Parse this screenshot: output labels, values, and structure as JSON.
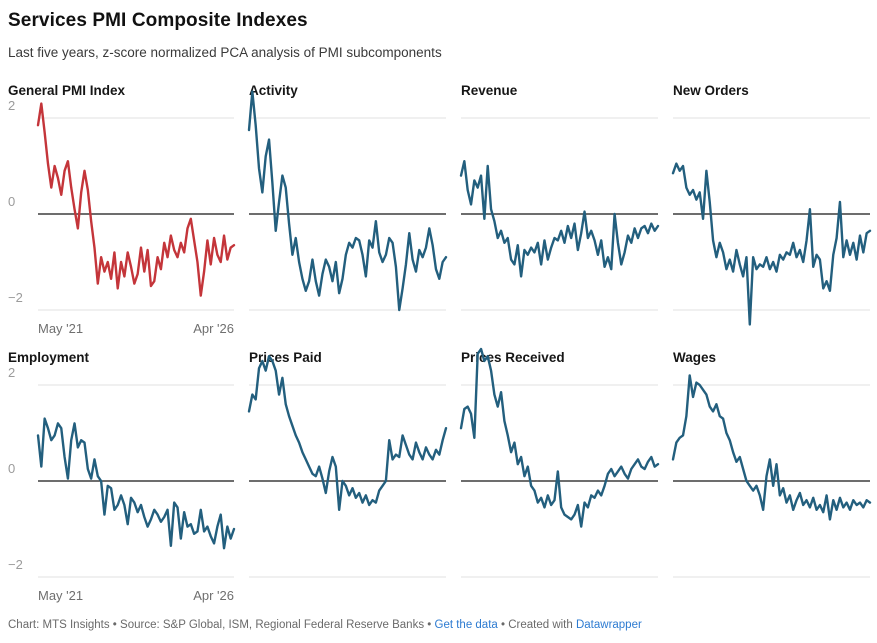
{
  "header": {
    "title": "Services PMI Composite Indexes",
    "subtitle": "Last five years, z-score normalized PCA analysis of PMI subcomponents"
  },
  "colors": {
    "highlight_red": "#c4353a",
    "series_teal": "#235f7e",
    "gridline": "#e2e2e2",
    "zero_line": "#161616",
    "tick_label": "#9b9b9b",
    "link_blue": "#2d7bd1"
  },
  "footer": {
    "part1": "Chart: MTS Insights • Source: S&P Global, ISM, Regional Federal Reserve Banks • ",
    "link_get_data": "Get the data",
    "part2": " • Created with ",
    "link_datawrapper": "Datawrapper"
  },
  "chart_data": {
    "type": "line",
    "layout": "small-multiples 2 rows x 4 cols",
    "x_range_labels": [
      "May '21",
      "Apr '26"
    ],
    "y_tick_labels": [
      "2",
      "0",
      "−2"
    ],
    "y_ticks": [
      2,
      0,
      -2
    ],
    "ylim": [
      -2.15,
      2.35
    ],
    "zero_baseline": true,
    "grid": "horizontal",
    "legend": "none",
    "panels": [
      {
        "title": "General PMI Index",
        "color": "#c4353a",
        "values": [
          1.85,
          2.3,
          1.7,
          1.05,
          0.55,
          1.0,
          0.75,
          0.4,
          0.9,
          1.1,
          0.55,
          0.1,
          -0.3,
          0.45,
          0.9,
          0.5,
          -0.15,
          -0.7,
          -1.45,
          -0.9,
          -1.2,
          -1.0,
          -1.35,
          -0.8,
          -1.55,
          -1.0,
          -1.3,
          -0.8,
          -1.1,
          -1.45,
          -1.25,
          -0.7,
          -1.2,
          -0.75,
          -1.5,
          -1.4,
          -0.9,
          -1.15,
          -0.6,
          -0.9,
          -0.45,
          -0.75,
          -0.9,
          -0.6,
          -0.8,
          -0.3,
          -0.1,
          -0.55,
          -1.0,
          -1.7,
          -1.2,
          -0.55,
          -1.05,
          -0.5,
          -0.85,
          -1.0,
          -0.45,
          -0.95,
          -0.7,
          -0.65
        ]
      },
      {
        "title": "Activity",
        "color": "#235f7e",
        "values": [
          1.75,
          2.55,
          1.85,
          0.95,
          0.45,
          1.2,
          1.55,
          0.65,
          -0.35,
          0.25,
          0.8,
          0.55,
          -0.2,
          -0.85,
          -0.5,
          -1.0,
          -1.35,
          -1.6,
          -1.4,
          -0.95,
          -1.4,
          -1.7,
          -1.25,
          -0.95,
          -1.1,
          -1.4,
          -1.0,
          -1.65,
          -1.35,
          -0.85,
          -0.6,
          -0.7,
          -0.5,
          -0.55,
          -0.85,
          -1.3,
          -0.55,
          -0.7,
          -0.15,
          -0.8,
          -1.0,
          -0.85,
          -0.5,
          -0.6,
          -1.1,
          -2.0,
          -1.55,
          -1.05,
          -0.4,
          -0.95,
          -1.2,
          -0.75,
          -0.9,
          -0.7,
          -0.3,
          -0.65,
          -1.15,
          -1.35,
          -1.0,
          -0.9
        ]
      },
      {
        "title": "Revenue",
        "color": "#235f7e",
        "values": [
          0.8,
          1.1,
          0.5,
          0.2,
          0.7,
          0.55,
          0.8,
          -0.1,
          1.0,
          0.1,
          -0.15,
          -0.5,
          -0.35,
          -0.6,
          -0.5,
          -0.95,
          -1.05,
          -0.65,
          -1.3,
          -0.75,
          -0.85,
          -0.7,
          -0.8,
          -0.6,
          -1.05,
          -0.55,
          -0.95,
          -0.7,
          -0.5,
          -0.55,
          -0.35,
          -0.6,
          -0.25,
          -0.5,
          -0.2,
          -0.75,
          -0.4,
          0.05,
          -0.5,
          -0.35,
          -0.55,
          -0.85,
          -0.55,
          -1.1,
          -0.9,
          -1.15,
          0.0,
          -0.6,
          -1.05,
          -0.8,
          -0.45,
          -0.6,
          -0.3,
          -0.5,
          -0.3,
          -0.25,
          -0.4,
          -0.2,
          -0.35,
          -0.25
        ]
      },
      {
        "title": "New Orders",
        "color": "#235f7e",
        "values": [
          0.85,
          1.05,
          0.9,
          1.0,
          0.55,
          0.4,
          0.5,
          0.3,
          0.45,
          -0.1,
          0.9,
          0.25,
          -0.55,
          -0.9,
          -0.6,
          -0.8,
          -1.15,
          -0.95,
          -1.2,
          -0.75,
          -1.05,
          -1.3,
          -0.9,
          -2.3,
          -0.9,
          -1.15,
          -1.05,
          -1.1,
          -0.9,
          -1.15,
          -1.0,
          -1.2,
          -0.85,
          -0.95,
          -0.8,
          -0.85,
          -0.6,
          -0.9,
          -0.75,
          -1.0,
          -0.55,
          0.1,
          -1.1,
          -0.85,
          -0.95,
          -1.55,
          -1.4,
          -1.6,
          -0.85,
          -0.5,
          0.25,
          -0.9,
          -0.55,
          -0.85,
          -0.6,
          -0.95,
          -0.45,
          -0.8,
          -0.4,
          -0.35
        ]
      },
      {
        "title": "Employment",
        "color": "#235f7e",
        "values": [
          0.95,
          0.3,
          1.3,
          1.1,
          0.85,
          0.95,
          1.2,
          1.1,
          0.5,
          0.05,
          0.85,
          1.2,
          0.7,
          0.85,
          0.8,
          0.25,
          0.05,
          0.45,
          0.1,
          0.0,
          -0.7,
          -0.1,
          -0.15,
          -0.6,
          -0.5,
          -0.3,
          -0.5,
          -0.9,
          -0.35,
          -0.45,
          -0.65,
          -0.5,
          -0.75,
          -0.95,
          -0.8,
          -0.6,
          -0.7,
          -0.85,
          -0.75,
          -0.6,
          -1.35,
          -0.45,
          -0.55,
          -1.2,
          -0.65,
          -0.95,
          -0.9,
          -1.1,
          -1.05,
          -0.6,
          -1.05,
          -0.95,
          -1.15,
          -1.3,
          -0.95,
          -0.7,
          -1.4,
          -0.95,
          -1.2,
          -1.0
        ]
      },
      {
        "title": "Prices Paid",
        "color": "#235f7e",
        "values": [
          1.45,
          1.8,
          1.7,
          2.35,
          2.5,
          2.3,
          2.6,
          2.5,
          2.3,
          1.8,
          2.15,
          1.6,
          1.35,
          1.15,
          0.95,
          0.8,
          0.6,
          0.45,
          0.3,
          0.15,
          0.1,
          0.3,
          0.05,
          -0.25,
          0.2,
          0.5,
          0.3,
          -0.6,
          0.0,
          -0.1,
          -0.3,
          -0.15,
          -0.35,
          -0.25,
          -0.45,
          -0.3,
          -0.5,
          -0.4,
          -0.45,
          -0.2,
          -0.1,
          0.0,
          0.85,
          0.45,
          0.55,
          0.5,
          0.95,
          0.75,
          0.55,
          0.45,
          0.8,
          0.6,
          0.45,
          0.7,
          0.55,
          0.45,
          0.65,
          0.55,
          0.85,
          1.1
        ]
      },
      {
        "title": "Prices Received",
        "color": "#235f7e",
        "values": [
          1.1,
          1.5,
          1.55,
          1.4,
          0.9,
          2.65,
          2.75,
          2.5,
          2.6,
          2.3,
          1.8,
          1.55,
          1.85,
          1.25,
          0.95,
          0.6,
          0.8,
          0.35,
          0.5,
          0.1,
          0.3,
          -0.1,
          -0.2,
          -0.45,
          -0.35,
          -0.55,
          -0.3,
          -0.5,
          -0.4,
          0.2,
          -0.55,
          -0.7,
          -0.75,
          -0.8,
          -0.7,
          -0.5,
          -0.95,
          -0.45,
          -0.55,
          -0.3,
          -0.35,
          -0.2,
          -0.3,
          -0.1,
          0.15,
          0.25,
          0.1,
          0.2,
          0.3,
          0.15,
          0.05,
          0.25,
          0.35,
          0.45,
          0.3,
          0.25,
          0.4,
          0.5,
          0.3,
          0.35
        ]
      },
      {
        "title": "Wages",
        "color": "#235f7e",
        "values": [
          0.45,
          0.8,
          0.9,
          0.95,
          1.35,
          2.2,
          1.75,
          2.05,
          2.0,
          1.9,
          1.8,
          1.55,
          1.45,
          1.6,
          1.35,
          1.3,
          1.0,
          0.85,
          0.6,
          0.4,
          0.5,
          0.25,
          0.0,
          -0.1,
          -0.2,
          -0.1,
          -0.3,
          -0.6,
          0.1,
          0.45,
          -0.1,
          0.35,
          -0.3,
          -0.15,
          -0.45,
          -0.3,
          -0.6,
          -0.4,
          -0.25,
          -0.5,
          -0.4,
          -0.55,
          -0.35,
          -0.6,
          -0.5,
          -0.65,
          -0.3,
          -0.8,
          -0.4,
          -0.6,
          -0.35,
          -0.55,
          -0.45,
          -0.6,
          -0.4,
          -0.5,
          -0.45,
          -0.55,
          -0.4,
          -0.45
        ]
      }
    ]
  }
}
